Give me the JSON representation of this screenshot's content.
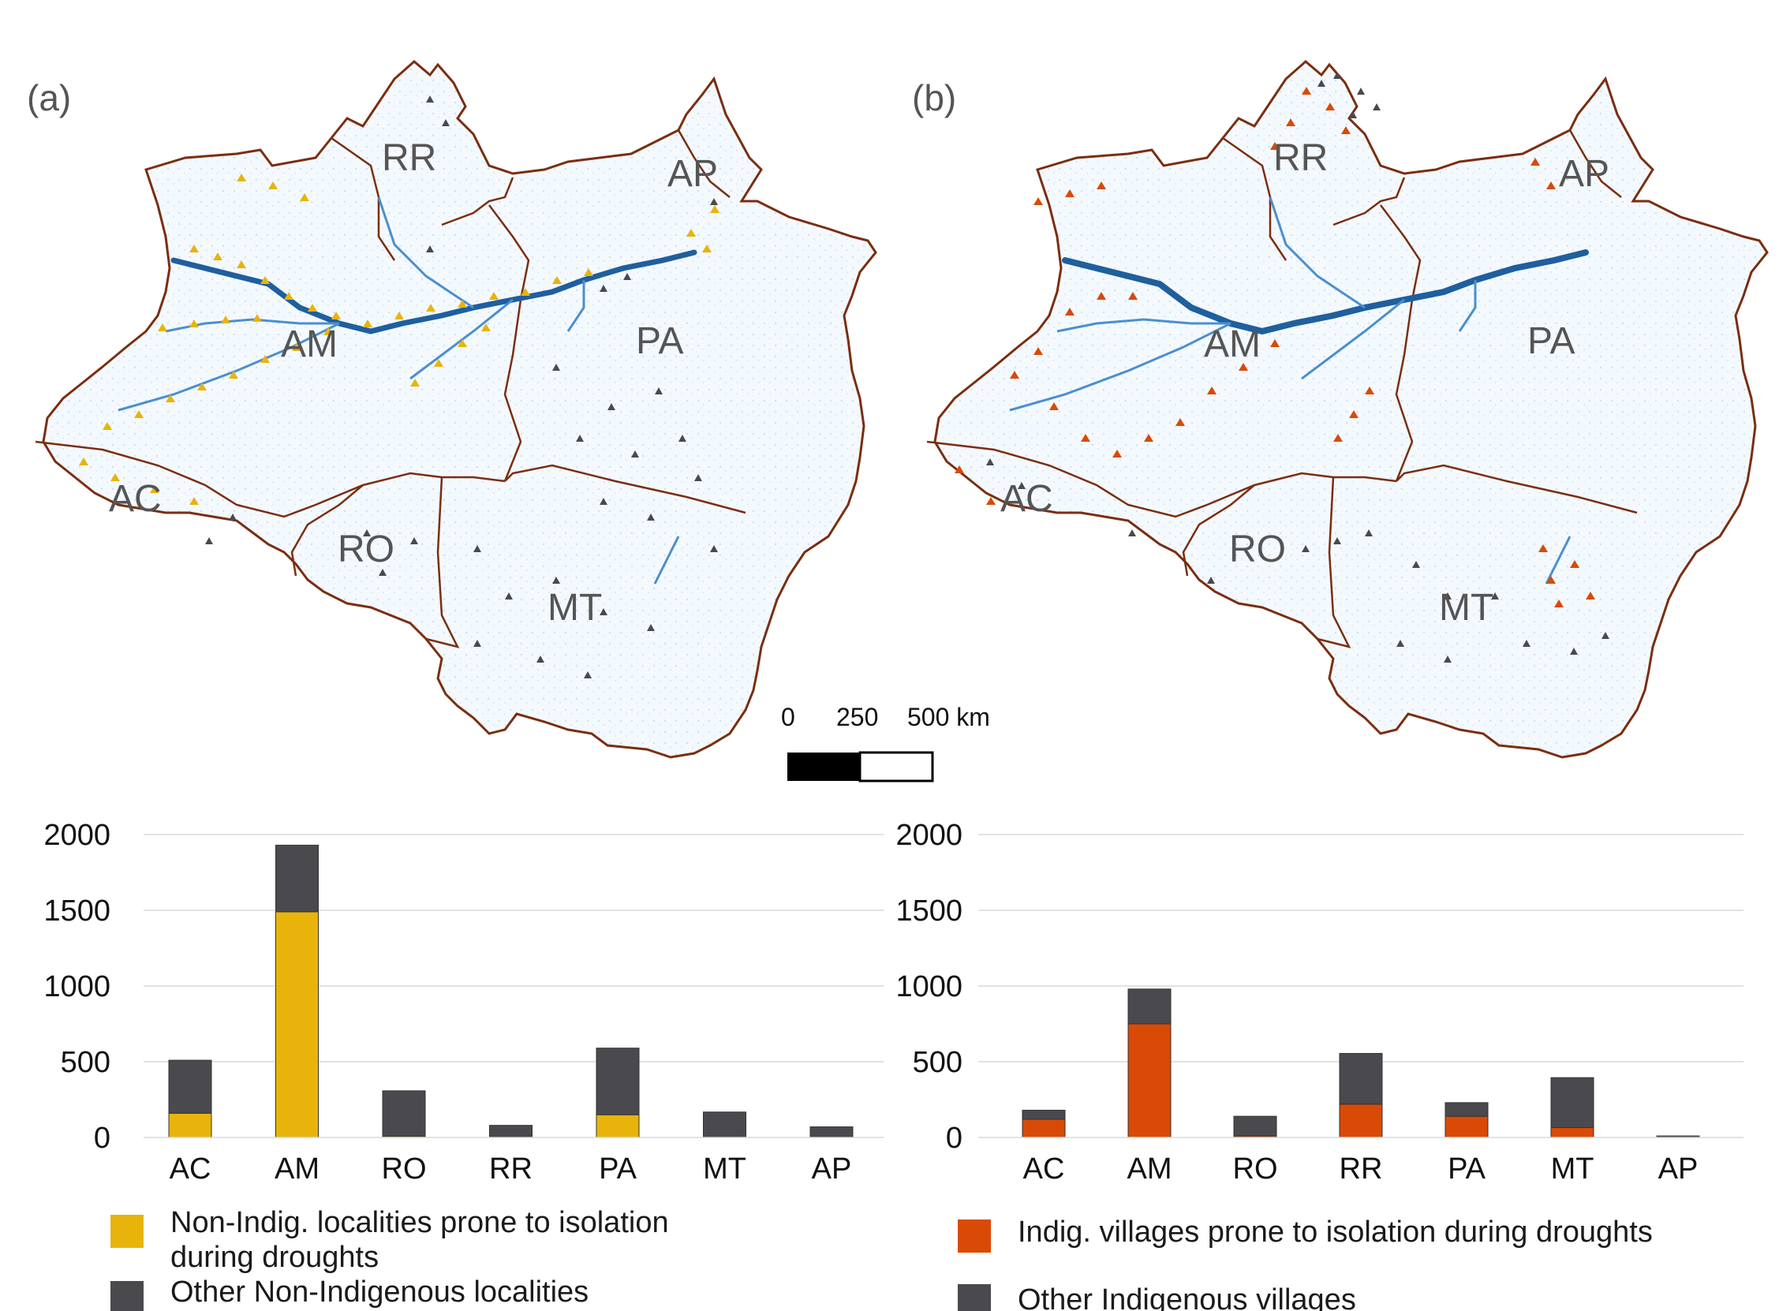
{
  "panels": [
    {
      "label": "(a)"
    },
    {
      "label": "(b)"
    }
  ],
  "states": [
    "RR",
    "AP",
    "AM",
    "PA",
    "AC",
    "RO",
    "MT"
  ],
  "scale_bar": {
    "labels": [
      "0",
      "250",
      "500 km"
    ]
  },
  "colors": {
    "yellow": "#E8B40C",
    "orange": "#D94A06",
    "gray": "#4A4A4E",
    "boundary": "#7A2E10",
    "river": "#2A7BC8",
    "river_light": "#CFE2F3"
  },
  "legend_left": [
    {
      "text_lines": [
        "Non-Indig. localities prone to isolation",
        "during droughts"
      ],
      "color": "#E8B40C"
    },
    {
      "text_lines": [
        "Other Non-Indigenous localities"
      ],
      "color": "#4A4A4E"
    }
  ],
  "legend_right": [
    {
      "text_lines": [
        "Indig. villages prone to isolation during droughts"
      ],
      "color": "#D94A06"
    },
    {
      "text_lines": [
        "Other Indigenous villages"
      ],
      "color": "#4A4A4E"
    }
  ],
  "chart_data": [
    {
      "type": "bar",
      "stacked": true,
      "categories": [
        "AC",
        "AM",
        "RO",
        "RR",
        "PA",
        "MT",
        "AP"
      ],
      "yticks": [
        0,
        500,
        1000,
        1500,
        2000
      ],
      "ylim": [
        0,
        2000
      ],
      "grid": true,
      "series": [
        {
          "name": "Non-Indig. localities prone to isolation during droughts",
          "color": "#E8B40C",
          "values": [
            160,
            1490,
            8,
            5,
            150,
            3,
            5
          ]
        },
        {
          "name": "Other Non-Indigenous localities",
          "color": "#4A4A4E",
          "values": [
            350,
            440,
            300,
            75,
            440,
            165,
            65
          ]
        }
      ]
    },
    {
      "type": "bar",
      "stacked": true,
      "categories": [
        "AC",
        "AM",
        "RO",
        "RR",
        "PA",
        "MT",
        "AP"
      ],
      "yticks": [
        0,
        500,
        1000,
        1500,
        2000
      ],
      "ylim": [
        0,
        2000
      ],
      "grid": true,
      "series": [
        {
          "name": "Indig. villages prone to isolation during droughts",
          "color": "#D94A06",
          "values": [
            120,
            750,
            10,
            220,
            140,
            65,
            2
          ]
        },
        {
          "name": "Other Indigenous villages",
          "color": "#4A4A4E",
          "values": [
            60,
            230,
            130,
            335,
            90,
            330,
            8
          ]
        }
      ]
    }
  ]
}
